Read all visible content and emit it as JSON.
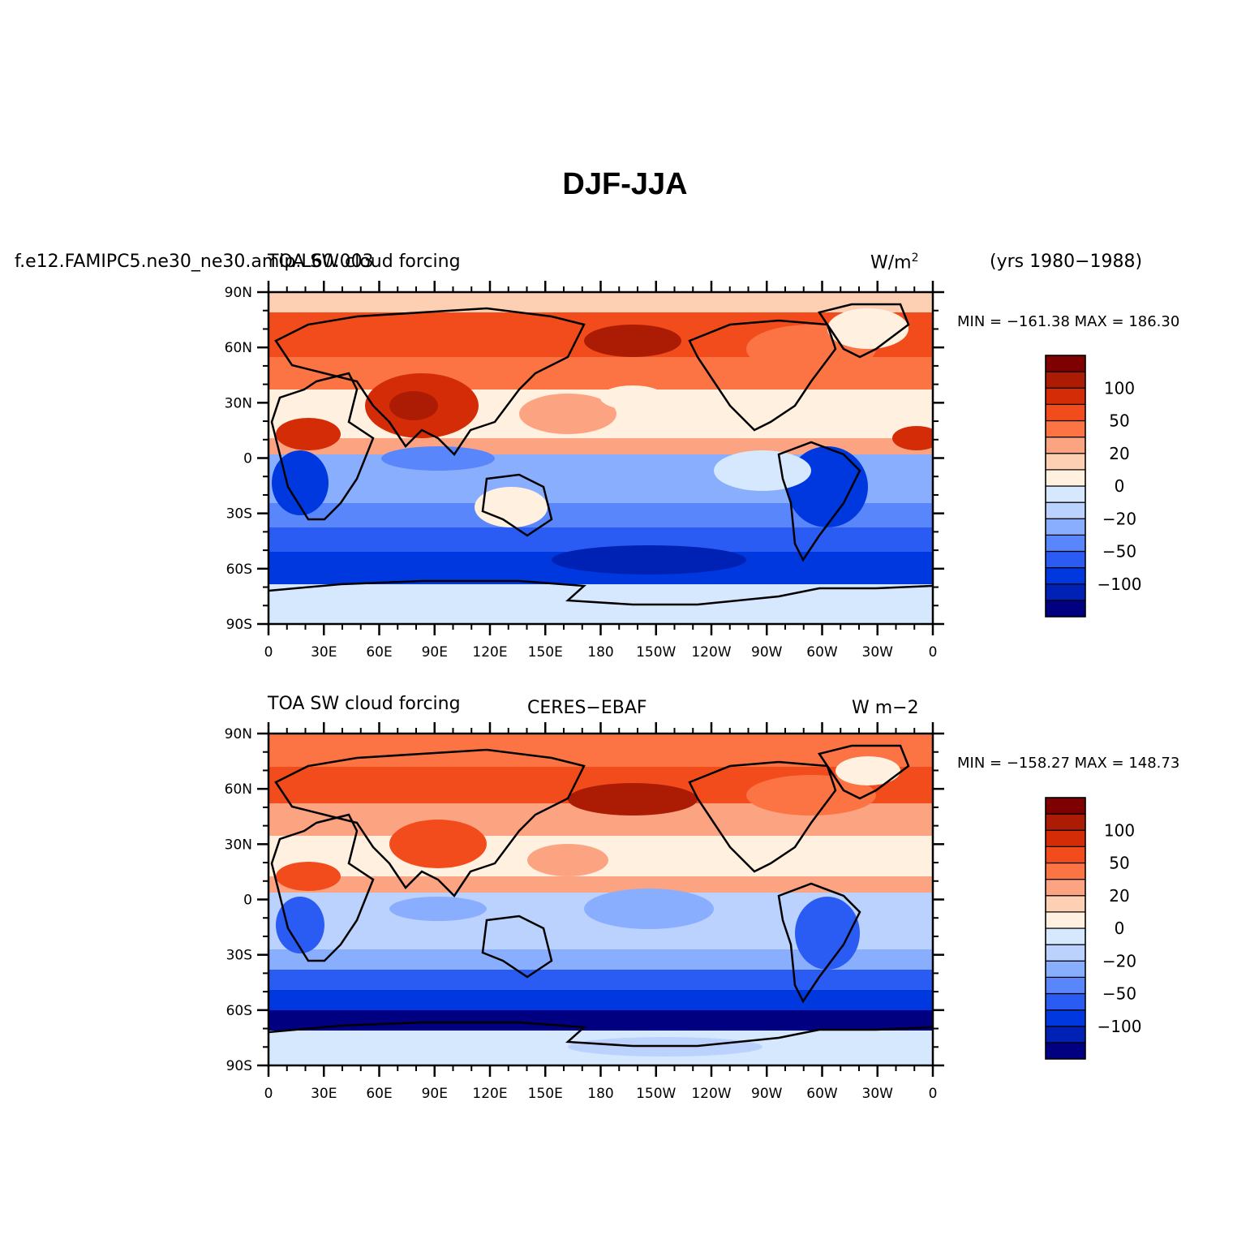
{
  "main_title": "DJF-JJA",
  "colorbar": {
    "colors": [
      "#000080",
      "#0022b4",
      "#0038e0",
      "#2a5cf4",
      "#5a86fc",
      "#8aaefe",
      "#bcd2fe",
      "#d6e8fe",
      "#fff0e0",
      "#fdd0b4",
      "#fca482",
      "#fc7344",
      "#f24c1c",
      "#d42c06",
      "#ac1c04",
      "#7e0000"
    ],
    "labels": [
      {
        "boundary": 2,
        "text": "−100"
      },
      {
        "boundary": 4,
        "text": "−50"
      },
      {
        "boundary": 6,
        "text": "−20"
      },
      {
        "boundary": 8,
        "text": "0"
      },
      {
        "boundary": 10,
        "text": "20"
      },
      {
        "boundary": 12,
        "text": "50"
      },
      {
        "boundary": 14,
        "text": "100"
      }
    ]
  },
  "axes": {
    "lat_labels": [
      "90N",
      "60N",
      "30N",
      "0",
      "30S",
      "60S",
      "90S"
    ],
    "lon_labels": [
      "0",
      "30E",
      "60E",
      "90E",
      "120E",
      "150E",
      "180",
      "150W",
      "120W",
      "90W",
      "60W",
      "30W",
      "0"
    ]
  },
  "panels": [
    {
      "left_title": "f.e12.FAMIPC5.ne30_ne30.amip.L60.003",
      "center_title": "TOA SW cloud forcing",
      "right_title": "W/m",
      "right_title_sup": "2",
      "years": "(yrs 1980−1988)",
      "minmax": "MIN = −161.38 MAX = 186.30"
    },
    {
      "left_title": "TOA SW cloud forcing",
      "center_title": "CERES−EBAF",
      "right_title": "W m−2",
      "right_title_sup": "",
      "years": "",
      "minmax": "MIN = −158.27 MAX = 148.73"
    }
  ]
}
